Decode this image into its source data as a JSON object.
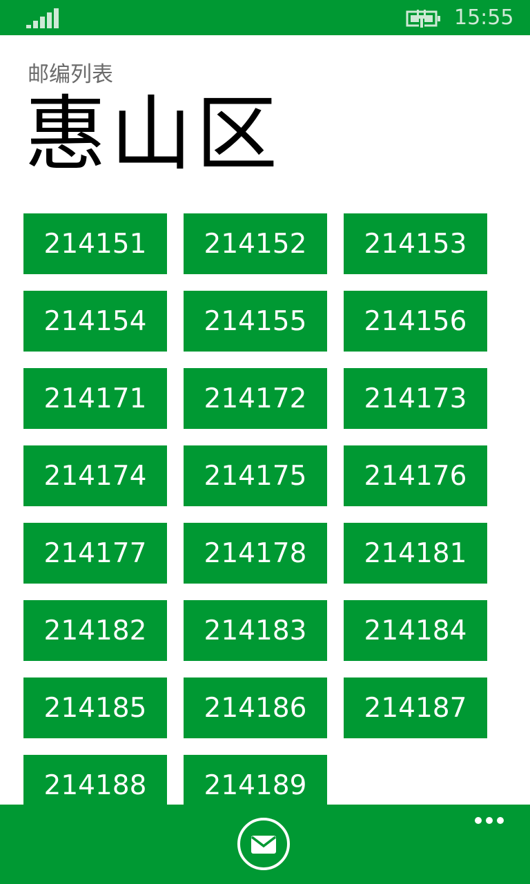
{
  "status_bar": {
    "time": "15:55",
    "signal_icon": "signal-strength-icon",
    "battery_icon": "battery-charging-icon"
  },
  "header": {
    "app_title": "邮编列表",
    "page_title": "惠山区"
  },
  "postal_codes": [
    "214151",
    "214152",
    "214153",
    "214154",
    "214155",
    "214156",
    "214171",
    "214172",
    "214173",
    "214174",
    "214175",
    "214176",
    "214177",
    "214178",
    "214181",
    "214182",
    "214183",
    "214184",
    "214185",
    "214186",
    "214187",
    "214188",
    "214189"
  ],
  "app_bar": {
    "primary_icon": "mail-icon",
    "more_icon": "more-ellipsis-icon"
  },
  "colors": {
    "accent": "#009933",
    "background": "#ffffff",
    "tile_text": "#ffffff",
    "subtitle": "#6b6b6b"
  }
}
